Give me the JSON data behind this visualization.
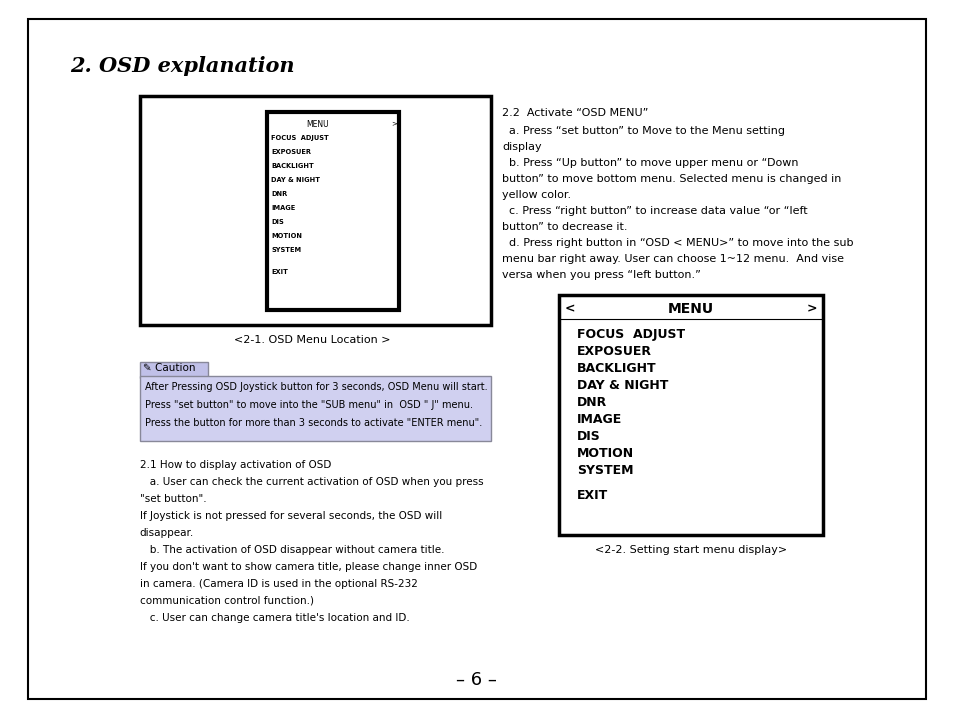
{
  "title": "2. OSD explanation",
  "page_number": "– 6 –",
  "bg_color": "#ffffff",
  "osd_menu_box_caption": "<2-1. OSD Menu Location >",
  "osd_menu_items": [
    "FOCUS  ADJUST",
    "EXPOSUER",
    "BACKLIGHT",
    "DAY & NIGHT",
    "DNR",
    "IMAGE",
    "DIS",
    "MOTION",
    "SYSTEM",
    "",
    "EXIT"
  ],
  "caution_label": "✎ Caution",
  "caution_lines": [
    "After Pressing OSD Joystick button for 3 seconds, OSD Menu will start.",
    "Press \"set button\" to move into the \"SUB menu\" in  OSD \" J\" menu.",
    "Press the button for more than 3 seconds to activate \"ENTER menu\"."
  ],
  "section_21_lines": [
    "2.1 How to display activation of OSD",
    "   a. User can check the current activation of OSD when you press",
    "\"set button\".",
    "If Joystick is not pressed for several seconds, the OSD will",
    "disappear.",
    "   b. The activation of OSD disappear without camera title.",
    "If you don't want to show camera title, please change inner OSD",
    "in camera. (Camera ID is used in the optional RS-232",
    "communication control function.)",
    "   c. User can change camera title's location and ID."
  ],
  "section_22_title": "2.2  Activate “OSD MENU”",
  "section_22_lines": [
    "  a. Press “set button” to Move to the Menu setting",
    "display",
    "  b. Press “Up button” to move upper menu or “Down",
    "button” to move bottom menu. Selected menu is changed in",
    "yellow color.",
    "  c. Press “right button” to increase data value “or “left",
    "button” to decrease it.",
    "  d. Press right button in “OSD < MENU>” to move into the sub",
    "menu bar right away. User can choose 1~12 menu.  And vise",
    "versa when you press “left button.”"
  ],
  "menu_box2_caption": "<2-2. Setting start menu display>",
  "menu_box2_items": [
    "FOCUS  ADJUST",
    "EXPOSUER",
    "BACKLIGHT",
    "DAY & NIGHT",
    "DNR",
    "IMAGE",
    "DIS",
    "MOTION",
    "SYSTEM",
    "",
    "EXIT"
  ]
}
